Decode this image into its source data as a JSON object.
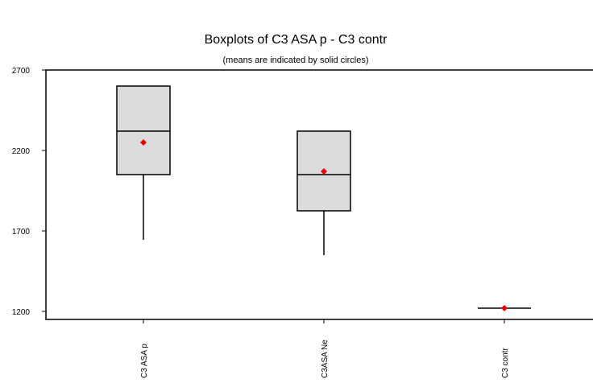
{
  "chart_data": {
    "type": "boxplot",
    "title": "Boxplots of C3 ASA p - C3 contr",
    "subtitle": "(means are indicated by solid circles)",
    "xlabel": "",
    "ylabel": "",
    "ylim": [
      1150,
      2750
    ],
    "yticks": [
      1200,
      1700,
      2200,
      2700
    ],
    "grid": false,
    "mean_color": "#ee0000",
    "box_fill": "#dcdcdc",
    "categories": [
      "C3 ASA p",
      "C3ASA Ne",
      "C3 contr"
    ],
    "boxes": [
      {
        "name": "C3 ASA p",
        "whisker_low": 1645,
        "q1": 2050,
        "median": 2320,
        "q3": 2600,
        "whisker_high": 2600,
        "mean": 2250
      },
      {
        "name": "C3ASA Ne",
        "whisker_low": 1550,
        "q1": 1825,
        "median": 2050,
        "q3": 2320,
        "whisker_high": 2320,
        "mean": 2070
      },
      {
        "name": "C3 contr",
        "whisker_low": 1220,
        "q1": 1220,
        "median": 1220,
        "q3": 1220,
        "whisker_high": 1220,
        "mean": 1220
      }
    ]
  }
}
